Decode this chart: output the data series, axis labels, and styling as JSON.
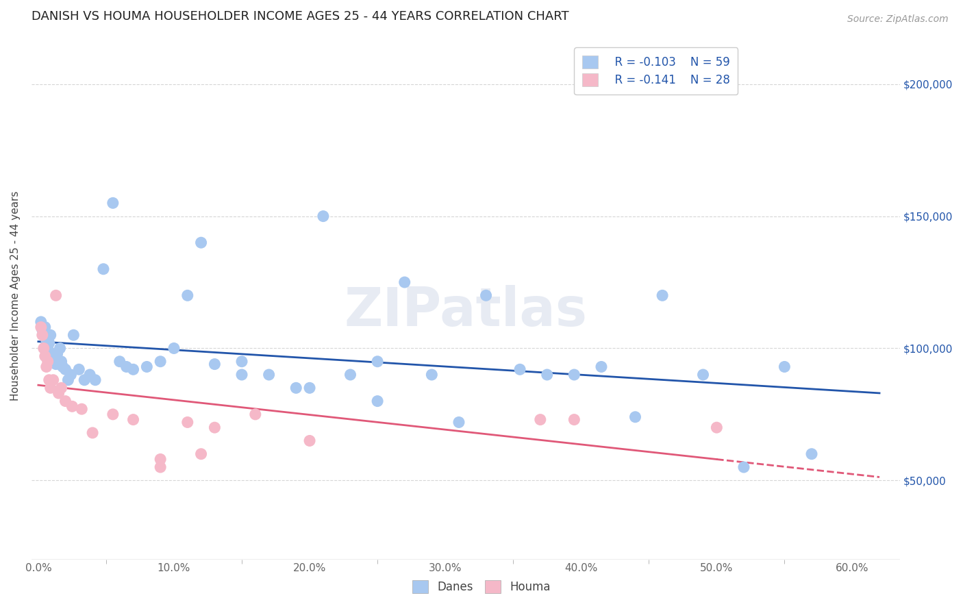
{
  "title": "DANISH VS HOUMA HOUSEHOLDER INCOME AGES 25 - 44 YEARS CORRELATION CHART",
  "source": "Source: ZipAtlas.com",
  "ylabel": "Householder Income Ages 25 - 44 years",
  "xlabel_ticks": [
    "0.0%",
    "10.0%",
    "20.0%",
    "30.0%",
    "40.0%",
    "50.0%",
    "60.0%"
  ],
  "xlabel_tick_vals": [
    0.0,
    0.1,
    0.2,
    0.3,
    0.4,
    0.5,
    0.6
  ],
  "ylabel_ticks": [
    "$50,000",
    "$100,000",
    "$150,000",
    "$200,000"
  ],
  "ylabel_tick_values": [
    50000,
    100000,
    150000,
    200000
  ],
  "xlim": [
    -0.005,
    0.635
  ],
  "ylim": [
    20000,
    220000
  ],
  "legend_r_danes": "R = -0.103",
  "legend_n_danes": "N = 59",
  "legend_r_houma": "R = -0.141",
  "legend_n_houma": "N = 28",
  "danes_color": "#a8c8f0",
  "houma_color": "#f5b8c8",
  "danes_line_color": "#2255aa",
  "houma_line_color": "#e05878",
  "danes_x": [
    0.002,
    0.003,
    0.004,
    0.005,
    0.006,
    0.007,
    0.008,
    0.009,
    0.01,
    0.011,
    0.012,
    0.013,
    0.014,
    0.015,
    0.016,
    0.017,
    0.018,
    0.02,
    0.022,
    0.024,
    0.026,
    0.03,
    0.034,
    0.038,
    0.042,
    0.048,
    0.055,
    0.06,
    0.065,
    0.07,
    0.08,
    0.09,
    0.1,
    0.11,
    0.12,
    0.13,
    0.15,
    0.17,
    0.19,
    0.21,
    0.23,
    0.25,
    0.27,
    0.29,
    0.31,
    0.33,
    0.355,
    0.375,
    0.395,
    0.415,
    0.44,
    0.46,
    0.49,
    0.52,
    0.55,
    0.57,
    0.15,
    0.2,
    0.25
  ],
  "danes_y": [
    110000,
    107000,
    105000,
    108000,
    103000,
    100000,
    102000,
    105000,
    98000,
    96000,
    97000,
    94000,
    98000,
    95000,
    100000,
    95000,
    93000,
    92000,
    88000,
    90000,
    105000,
    92000,
    88000,
    90000,
    88000,
    130000,
    155000,
    95000,
    93000,
    92000,
    93000,
    95000,
    100000,
    120000,
    140000,
    94000,
    95000,
    90000,
    85000,
    150000,
    90000,
    80000,
    125000,
    90000,
    72000,
    120000,
    92000,
    90000,
    90000,
    93000,
    74000,
    120000,
    90000,
    55000,
    93000,
    60000,
    90000,
    85000,
    95000
  ],
  "houma_x": [
    0.002,
    0.003,
    0.004,
    0.005,
    0.006,
    0.007,
    0.008,
    0.009,
    0.011,
    0.013,
    0.015,
    0.017,
    0.02,
    0.025,
    0.032,
    0.04,
    0.055,
    0.07,
    0.09,
    0.11,
    0.13,
    0.16,
    0.2,
    0.09,
    0.12,
    0.37,
    0.395,
    0.5
  ],
  "houma_y": [
    108000,
    105000,
    100000,
    97000,
    93000,
    95000,
    88000,
    85000,
    88000,
    120000,
    83000,
    85000,
    80000,
    78000,
    77000,
    68000,
    75000,
    73000,
    58000,
    72000,
    70000,
    75000,
    65000,
    55000,
    60000,
    73000,
    73000,
    70000
  ],
  "watermark": "ZIPatlas",
  "background_color": "#ffffff",
  "grid_color": "#cccccc"
}
